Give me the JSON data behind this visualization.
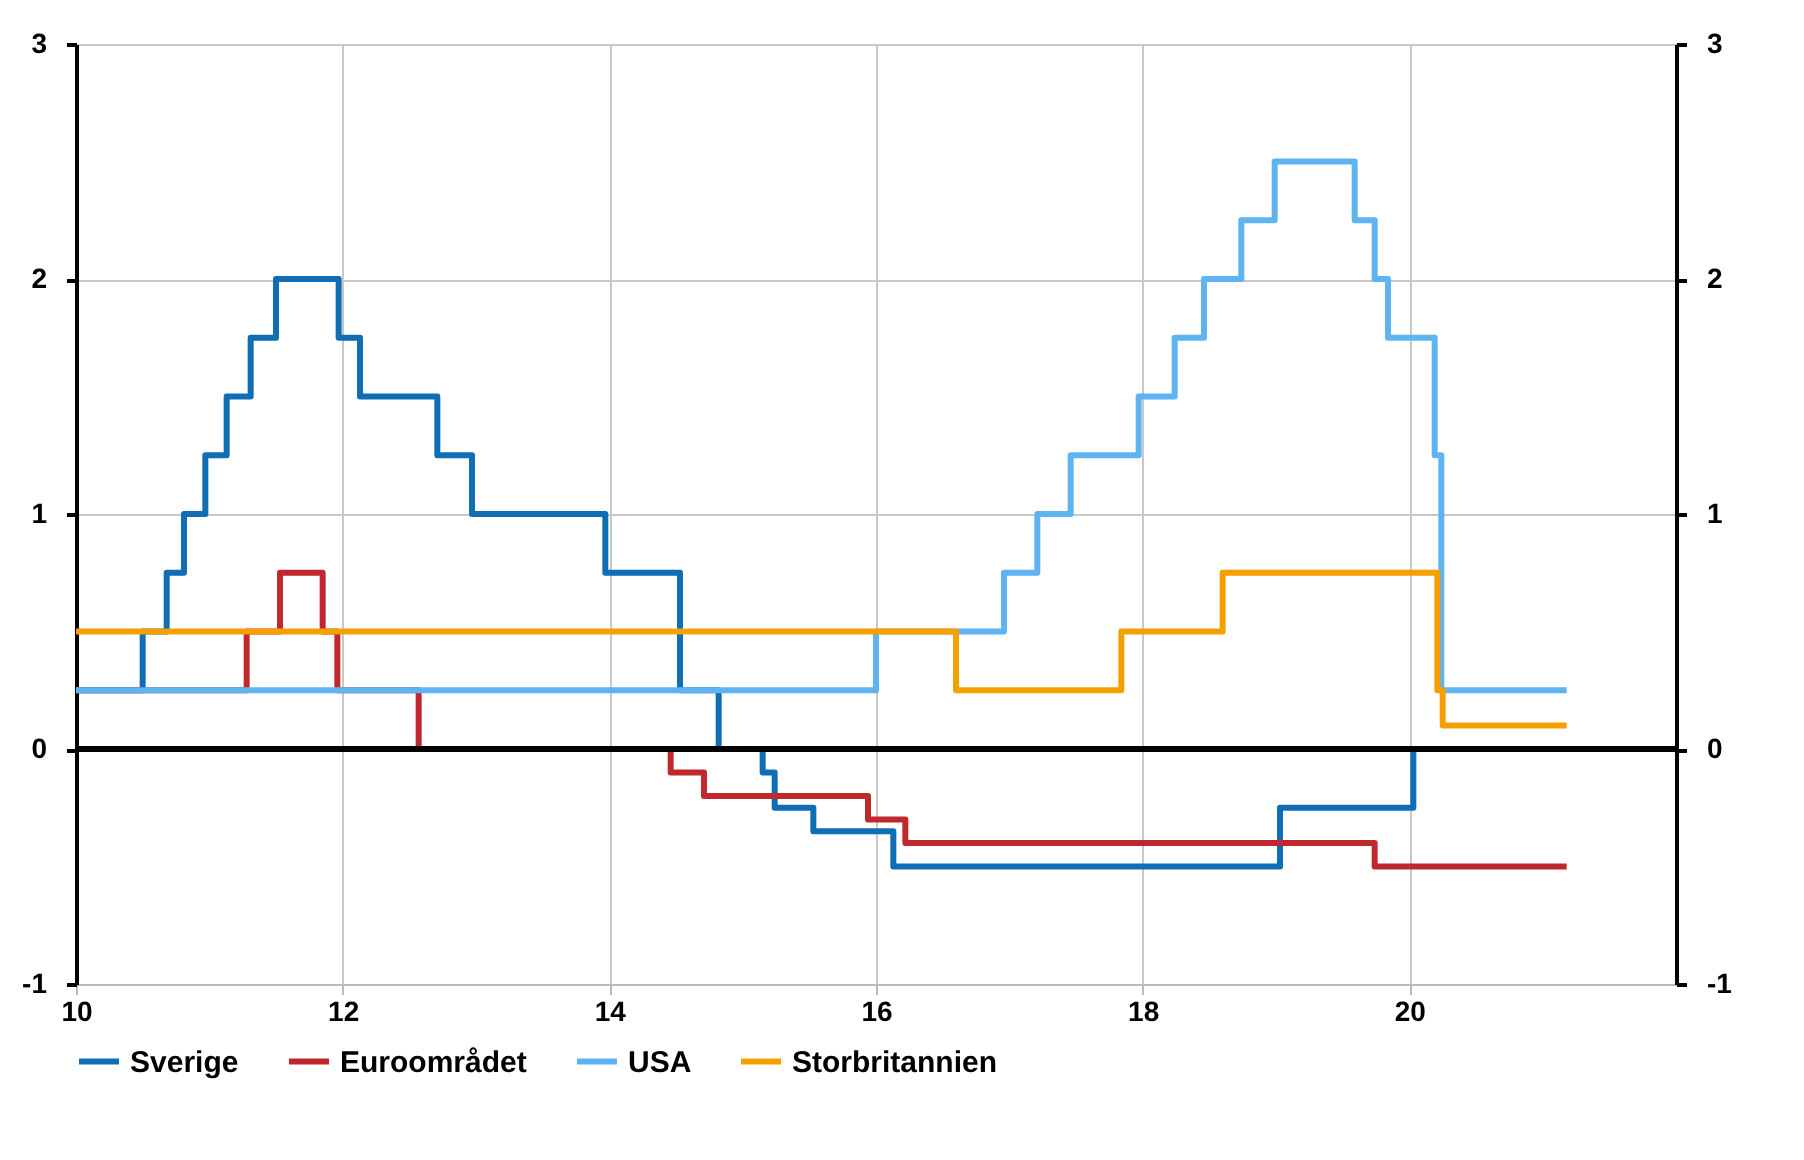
{
  "chart_data": {
    "type": "step",
    "xlim": [
      10,
      22
    ],
    "xticks": [
      10,
      12,
      14,
      16,
      18,
      20
    ],
    "ylim": [
      -1,
      3
    ],
    "yticks": [
      -1,
      0,
      1,
      2,
      3
    ],
    "y2lim": [
      -1,
      3
    ],
    "y2ticks": [
      -1,
      0,
      1,
      2,
      3
    ],
    "grid": true,
    "legend": "bottom",
    "line_style": "solid",
    "marker": "none",
    "ref_lines": [
      {
        "axis": "y",
        "value": 0,
        "color": "#000000"
      }
    ],
    "series": [
      {
        "name": "Sverige",
        "color": "#0f6eb4",
        "x": [
          10,
          10.5,
          10.68,
          10.81,
          10.97,
          11.13,
          11.31,
          11.5,
          11.97,
          12.13,
          12.71,
          12.97,
          13.97,
          14.53,
          14.82,
          15.15,
          15.24,
          15.53,
          16.13,
          19.03,
          20.03,
          21.18
        ],
        "values": [
          0.25,
          0.5,
          0.75,
          1,
          1.25,
          1.5,
          1.75,
          2,
          1.75,
          1.5,
          1.25,
          1,
          0.75,
          0.25,
          0,
          -0.1,
          -0.25,
          -0.35,
          -0.5,
          -0.25,
          0,
          0
        ]
      },
      {
        "name": "Euroområdet",
        "color": "#c0282e",
        "x": [
          10,
          11.28,
          11.53,
          11.85,
          11.96,
          12.57,
          14.46,
          14.71,
          15.94,
          16.22,
          19.74,
          21.18
        ],
        "values": [
          0.25,
          0.5,
          0.75,
          0.5,
          0.25,
          0,
          -0.1,
          -0.2,
          -0.3,
          -0.4,
          -0.5,
          -0.5
        ]
      },
      {
        "name": "USA",
        "color": "#5db4f0",
        "x": [
          10,
          16,
          16.96,
          17.21,
          17.46,
          17.97,
          18.24,
          18.46,
          18.74,
          18.99,
          19.59,
          19.74,
          19.84,
          20.19,
          20.24,
          21.18
        ],
        "values": [
          0.25,
          0.5,
          0.75,
          1,
          1.25,
          1.5,
          1.75,
          2,
          2.25,
          2.5,
          2.25,
          2,
          1.75,
          1.25,
          0.25,
          0.25
        ]
      },
      {
        "name": "Storbritannien",
        "color": "#f5a000",
        "x": [
          10,
          16.6,
          17.84,
          18.6,
          20.21,
          20.25,
          21.18
        ],
        "values": [
          0.5,
          0.25,
          0.5,
          0.75,
          0.25,
          0.1,
          0.1
        ]
      }
    ]
  }
}
